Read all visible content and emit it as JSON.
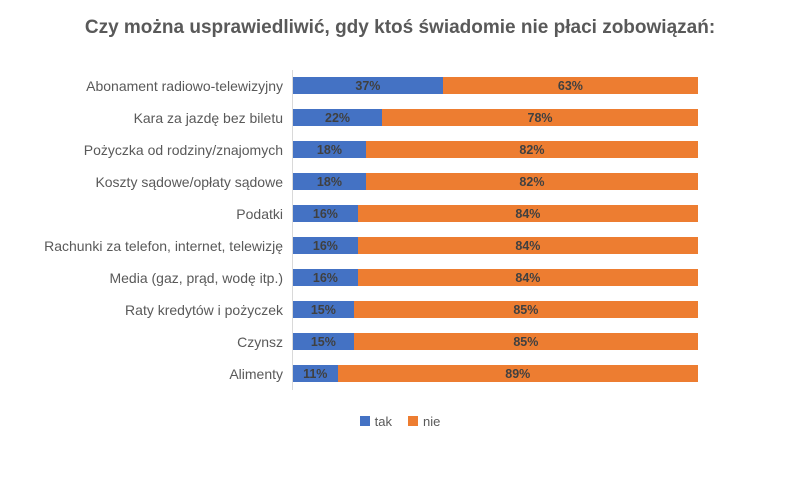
{
  "chart_data": {
    "type": "bar",
    "orientation": "horizontal",
    "stacked": true,
    "title": "Czy można usprawiedliwić, gdy ktoś świadomie nie płaci zobowiązań:",
    "xlabel": "",
    "ylabel": "",
    "xlim": [
      0,
      100
    ],
    "grid": false,
    "legend_position": "bottom",
    "categories": [
      "Abonament radiowo-telewizyjny",
      "Kara za jazdę bez biletu",
      "Pożyczka od rodziny/znajomych",
      "Koszty sądowe/opłaty sądowe",
      "Podatki",
      "Rachunki za telefon, internet, telewizję",
      "Media (gaz, prąd, wodę itp.)",
      "Raty kredytów i pożyczek",
      "Czynsz",
      "Alimenty"
    ],
    "series": [
      {
        "name": "tak",
        "color": "#4472C4",
        "values": [
          37,
          22,
          18,
          18,
          16,
          16,
          16,
          15,
          15,
          11
        ]
      },
      {
        "name": "nie",
        "color": "#ED7D31",
        "values": [
          63,
          78,
          82,
          82,
          84,
          84,
          84,
          85,
          85,
          89
        ]
      }
    ],
    "rows": [
      {
        "label": "Abonament radiowo-telewizyjny",
        "tak": 37,
        "nie": 63,
        "tak_label": "37%",
        "nie_label": "63%"
      },
      {
        "label": "Kara za jazdę bez biletu",
        "tak": 22,
        "nie": 78,
        "tak_label": "22%",
        "nie_label": "78%"
      },
      {
        "label": "Pożyczka od rodziny/znajomych",
        "tak": 18,
        "nie": 82,
        "tak_label": "18%",
        "nie_label": "82%"
      },
      {
        "label": "Koszty sądowe/opłaty sądowe",
        "tak": 18,
        "nie": 82,
        "tak_label": "18%",
        "nie_label": "82%"
      },
      {
        "label": "Podatki",
        "tak": 16,
        "nie": 84,
        "tak_label": "16%",
        "nie_label": "84%"
      },
      {
        "label": "Rachunki za telefon, internet, telewizję",
        "tak": 16,
        "nie": 84,
        "tak_label": "16%",
        "nie_label": "84%"
      },
      {
        "label": "Media (gaz, prąd, wodę itp.)",
        "tak": 16,
        "nie": 84,
        "tak_label": "16%",
        "nie_label": "84%"
      },
      {
        "label": "Raty kredytów i pożyczek",
        "tak": 15,
        "nie": 85,
        "tak_label": "15%",
        "nie_label": "85%"
      },
      {
        "label": "Czynsz",
        "tak": 15,
        "nie": 85,
        "tak_label": "15%",
        "nie_label": "85%"
      },
      {
        "label": "Alimenty",
        "tak": 11,
        "nie": 89,
        "tak_label": "11%",
        "nie_label": "89%"
      }
    ],
    "colors": {
      "tak": "#4472C4",
      "nie": "#ED7D31",
      "title": "#595959",
      "category_label": "#595959",
      "value_label": "#404040",
      "axis_line": "#D9D9D9"
    },
    "legend": {
      "items": [
        {
          "label": "tak",
          "color": "#4472C4"
        },
        {
          "label": "nie",
          "color": "#ED7D31"
        }
      ]
    }
  }
}
